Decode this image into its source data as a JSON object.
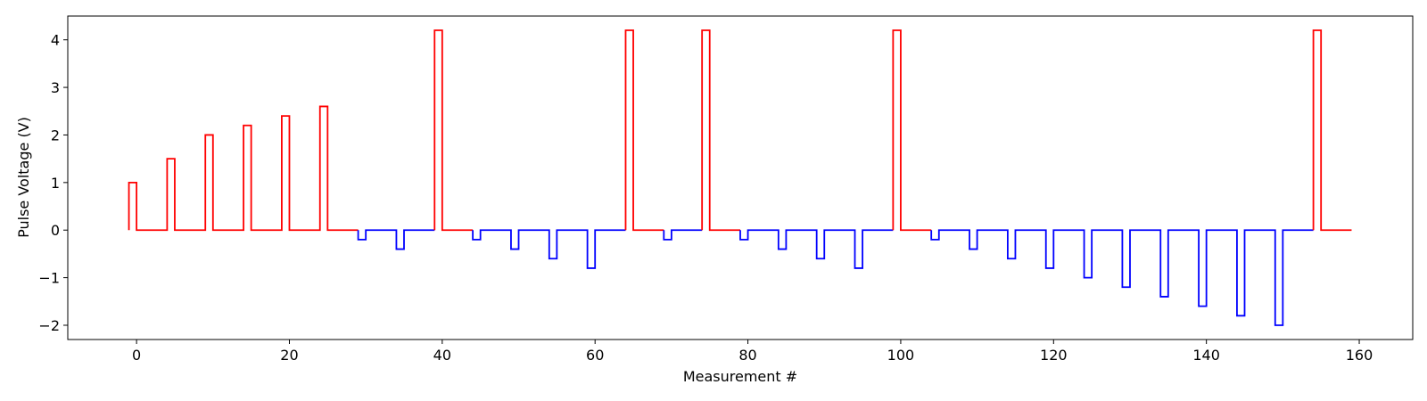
{
  "chart_data": {
    "type": "line",
    "step": true,
    "xlabel": "Measurement #",
    "ylabel": "Pulse Voltage (V)",
    "xlim": [
      -9,
      167
    ],
    "ylim": [
      -2.3,
      4.5
    ],
    "xticks": [
      0,
      20,
      40,
      60,
      80,
      100,
      120,
      140,
      160
    ],
    "yticks": [
      -2,
      -1,
      0,
      1,
      2,
      3,
      4
    ],
    "grid": false,
    "legend": "none",
    "colors": {
      "positive": "#ff0000",
      "negative": "#0000ff"
    },
    "series": [
      {
        "color": "#ff0000",
        "points": [
          [
            -1,
            0
          ],
          [
            -1,
            1
          ],
          [
            0,
            1
          ],
          [
            0,
            0
          ],
          [
            4,
            0
          ],
          [
            4,
            1.5
          ],
          [
            5,
            1.5
          ],
          [
            5,
            0
          ],
          [
            9,
            0
          ],
          [
            9,
            2.0
          ],
          [
            10,
            2.0
          ],
          [
            10,
            0
          ],
          [
            14,
            0
          ],
          [
            14,
            2.2
          ],
          [
            15,
            2.2
          ],
          [
            15,
            0
          ],
          [
            19,
            0
          ],
          [
            19,
            2.4
          ],
          [
            20,
            2.4
          ],
          [
            20,
            0
          ],
          [
            24,
            0
          ],
          [
            24,
            2.6
          ],
          [
            25,
            2.6
          ],
          [
            25,
            0
          ],
          [
            29,
            0
          ]
        ]
      },
      {
        "color": "#0000ff",
        "points": [
          [
            29,
            0
          ],
          [
            29,
            -0.2
          ],
          [
            30,
            -0.2
          ],
          [
            30,
            0
          ],
          [
            34,
            0
          ],
          [
            34,
            -0.4
          ],
          [
            35,
            -0.4
          ],
          [
            35,
            0
          ],
          [
            39,
            0
          ]
        ]
      },
      {
        "color": "#ff0000",
        "points": [
          [
            39,
            0
          ],
          [
            39,
            4.2
          ],
          [
            40,
            4.2
          ],
          [
            40,
            0
          ],
          [
            44,
            0
          ]
        ]
      },
      {
        "color": "#0000ff",
        "points": [
          [
            44,
            0
          ],
          [
            44,
            -0.2
          ],
          [
            45,
            -0.2
          ],
          [
            45,
            0
          ],
          [
            49,
            0
          ],
          [
            49,
            -0.4
          ],
          [
            50,
            -0.4
          ],
          [
            50,
            0
          ],
          [
            54,
            0
          ],
          [
            54,
            -0.6
          ],
          [
            55,
            -0.6
          ],
          [
            55,
            0
          ],
          [
            59,
            0
          ],
          [
            59,
            -0.8
          ],
          [
            60,
            -0.8
          ],
          [
            60,
            0
          ],
          [
            64,
            0
          ]
        ]
      },
      {
        "color": "#ff0000",
        "points": [
          [
            64,
            0
          ],
          [
            64,
            4.2
          ],
          [
            65,
            4.2
          ],
          [
            65,
            0
          ],
          [
            69,
            0
          ]
        ]
      },
      {
        "color": "#0000ff",
        "points": [
          [
            69,
            0
          ],
          [
            69,
            -0.2
          ],
          [
            70,
            -0.2
          ],
          [
            70,
            0
          ],
          [
            74,
            0
          ]
        ]
      },
      {
        "color": "#ff0000",
        "points": [
          [
            74,
            0
          ],
          [
            74,
            4.2
          ],
          [
            75,
            4.2
          ],
          [
            75,
            0
          ],
          [
            79,
            0
          ]
        ]
      },
      {
        "color": "#0000ff",
        "points": [
          [
            79,
            0
          ],
          [
            79,
            -0.2
          ],
          [
            80,
            -0.2
          ],
          [
            80,
            0
          ],
          [
            84,
            0
          ],
          [
            84,
            -0.4
          ],
          [
            85,
            -0.4
          ],
          [
            85,
            0
          ],
          [
            89,
            0
          ],
          [
            89,
            -0.6
          ],
          [
            90,
            -0.6
          ],
          [
            90,
            0
          ],
          [
            94,
            0
          ],
          [
            94,
            -0.8
          ],
          [
            95,
            -0.8
          ],
          [
            95,
            0
          ],
          [
            99,
            0
          ]
        ]
      },
      {
        "color": "#ff0000",
        "points": [
          [
            99,
            0
          ],
          [
            99,
            4.2
          ],
          [
            100,
            4.2
          ],
          [
            100,
            0
          ],
          [
            104,
            0
          ]
        ]
      },
      {
        "color": "#0000ff",
        "points": [
          [
            104,
            0
          ],
          [
            104,
            -0.2
          ],
          [
            105,
            -0.2
          ],
          [
            105,
            0
          ],
          [
            109,
            0
          ],
          [
            109,
            -0.4
          ],
          [
            110,
            -0.4
          ],
          [
            110,
            0
          ],
          [
            114,
            0
          ],
          [
            114,
            -0.6
          ],
          [
            115,
            -0.6
          ],
          [
            115,
            0
          ],
          [
            119,
            0
          ],
          [
            119,
            -0.8
          ],
          [
            120,
            -0.8
          ],
          [
            120,
            0
          ],
          [
            124,
            0
          ],
          [
            124,
            -1.0
          ],
          [
            125,
            -1.0
          ],
          [
            125,
            0
          ],
          [
            129,
            0
          ],
          [
            129,
            -1.2
          ],
          [
            130,
            -1.2
          ],
          [
            130,
            0
          ],
          [
            134,
            0
          ],
          [
            134,
            -1.4
          ],
          [
            135,
            -1.4
          ],
          [
            135,
            0
          ],
          [
            139,
            0
          ],
          [
            139,
            -1.6
          ],
          [
            140,
            -1.6
          ],
          [
            140,
            0
          ],
          [
            144,
            0
          ],
          [
            144,
            -1.8
          ],
          [
            145,
            -1.8
          ],
          [
            145,
            0
          ],
          [
            149,
            0
          ],
          [
            149,
            -2.0
          ],
          [
            150,
            -2.0
          ],
          [
            150,
            0
          ],
          [
            154,
            0
          ]
        ]
      },
      {
        "color": "#ff0000",
        "points": [
          [
            154,
            0
          ],
          [
            154,
            4.2
          ],
          [
            155,
            4.2
          ],
          [
            155,
            0
          ],
          [
            159,
            0
          ]
        ]
      }
    ]
  }
}
